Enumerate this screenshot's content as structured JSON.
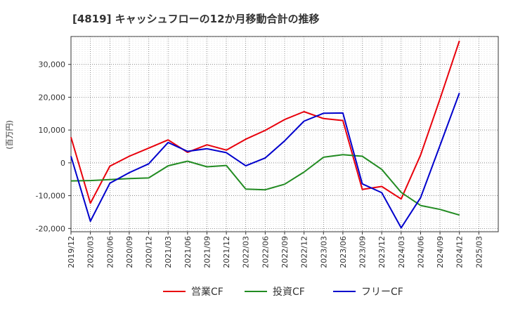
{
  "chart_data": {
    "type": "line",
    "title": "[4819]  キャッシュフローの12か月移動合計の推移",
    "ylabel": "(百万円)",
    "xlabel": "",
    "ylim": [
      -21000,
      38500
    ],
    "yticks": [
      -20000,
      -10000,
      0,
      10000,
      20000,
      30000
    ],
    "ytick_labels": [
      "-20,000",
      "-10,000",
      "0",
      "10,000",
      "20,000",
      "30,000"
    ],
    "x_labels": [
      "2019/12",
      "2020/03",
      "2020/06",
      "2020/09",
      "2020/12",
      "2021/03",
      "2021/06",
      "2021/09",
      "2021/12",
      "2022/03",
      "2022/06",
      "2022/09",
      "2022/12",
      "2023/03",
      "2023/06",
      "2023/09",
      "2023/12",
      "2024/03",
      "2024/06",
      "2024/09",
      "2024/12",
      "2025/03"
    ],
    "grid": true,
    "legend_position": "bottom",
    "series": [
      {
        "name": "営業CF",
        "color": "#e8000b",
        "values": [
          7800,
          -12300,
          -1000,
          2000,
          4500,
          7000,
          3200,
          5500,
          3900,
          7200,
          9900,
          13200,
          15600,
          13500,
          12900,
          -8100,
          -7200,
          -11000,
          2400,
          19500,
          37200,
          null
        ]
      },
      {
        "name": "投資CF",
        "color": "#228b22",
        "values": [
          -5500,
          -5400,
          -5100,
          -4800,
          -4600,
          -900,
          500,
          -1200,
          -800,
          -8000,
          -8200,
          -6500,
          -2800,
          1700,
          2500,
          2000,
          -2000,
          -9000,
          -13000,
          -14200,
          -15900,
          null
        ]
      },
      {
        "name": "フリーCF",
        "color": "#0000cc",
        "values": [
          2000,
          -17800,
          -6200,
          -3000,
          -300,
          6200,
          3500,
          4300,
          3100,
          -900,
          1500,
          6700,
          12700,
          15100,
          15200,
          -6400,
          -9100,
          -19800,
          -10600,
          5300,
          21300,
          null
        ]
      }
    ]
  }
}
